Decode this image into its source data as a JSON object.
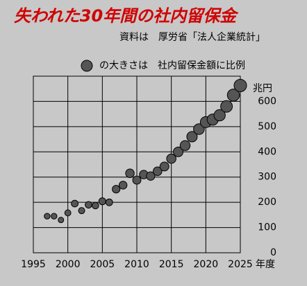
{
  "chart_data": {
    "type": "bubble",
    "title": "失われた30年間の社内留保金",
    "subtitle": "資料は　厚労省「法人企業統計」",
    "legend": "の大きさは　社内留保金額に比例",
    "y_unit": "兆円",
    "x_unit": "年度",
    "x": [
      1997,
      1998,
      1999,
      2000,
      2001,
      2002,
      2003,
      2004,
      2005,
      2006,
      2007,
      2008,
      2009,
      2010,
      2011,
      2012,
      2013,
      2014,
      2015,
      2016,
      2017,
      2018,
      2019,
      2020,
      2021,
      2022,
      2023,
      2024,
      2025
    ],
    "values": [
      145,
      145,
      130,
      158,
      195,
      167,
      190,
      187,
      204,
      200,
      252,
      268,
      315,
      288,
      310,
      304,
      323,
      342,
      373,
      400,
      425,
      460,
      490,
      518,
      528,
      545,
      580,
      625,
      663
    ],
    "color": "#555555",
    "xlim": [
      1995,
      2025
    ],
    "xticks": [
      1995,
      2000,
      2005,
      2010,
      2015,
      2020,
      2025
    ],
    "ylim": [
      0,
      700
    ],
    "yticks": [
      0,
      100,
      200,
      300,
      400,
      500,
      600
    ],
    "grid": true
  }
}
